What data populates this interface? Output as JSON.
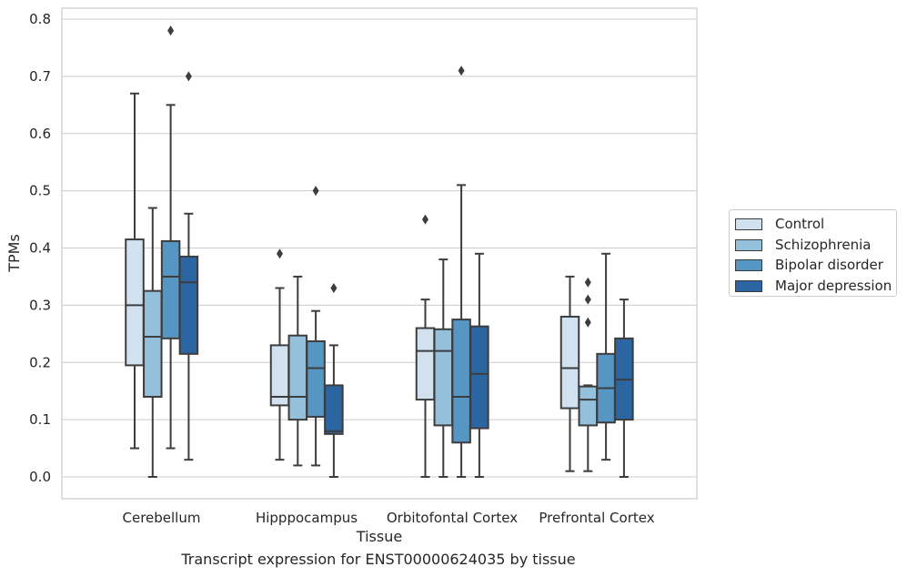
{
  "chart_data": {
    "type": "box",
    "title": "",
    "xlabel": "Tissue",
    "ylabel": "TPMs",
    "ylim": [
      -0.04,
      0.82
    ],
    "yticks": [
      0.0,
      0.1,
      0.2,
      0.3,
      0.4,
      0.5,
      0.6,
      0.7,
      0.8
    ],
    "ytick_labels": [
      "0.0",
      "0.1",
      "0.2",
      "0.3",
      "0.4",
      "0.5",
      "0.6",
      "0.7",
      "0.8"
    ],
    "grid": "horizontal",
    "legend_position": "right",
    "categories": [
      "Cerebellum",
      "Hipppocampus",
      "Orbitofontal Cortex",
      "Prefrontal Cortex"
    ],
    "series": [
      {
        "name": "Control",
        "color": "#d1e1f0",
        "boxes": [
          {
            "low": 0.05,
            "q1": 0.195,
            "median": 0.3,
            "q3": 0.415,
            "high": 0.67,
            "outliers": []
          },
          {
            "low": 0.03,
            "q1": 0.125,
            "median": 0.14,
            "q3": 0.23,
            "high": 0.33,
            "outliers": [
              0.39
            ]
          },
          {
            "low": 0.0,
            "q1": 0.135,
            "median": 0.22,
            "q3": 0.26,
            "high": 0.31,
            "outliers": [
              0.45
            ]
          },
          {
            "low": 0.01,
            "q1": 0.12,
            "median": 0.19,
            "q3": 0.28,
            "high": 0.35,
            "outliers": []
          }
        ]
      },
      {
        "name": "Schizophrenia",
        "color": "#95c0dc",
        "boxes": [
          {
            "low": 0.0,
            "q1": 0.14,
            "median": 0.245,
            "q3": 0.325,
            "high": 0.47,
            "outliers": []
          },
          {
            "low": 0.02,
            "q1": 0.1,
            "median": 0.14,
            "q3": 0.247,
            "high": 0.35,
            "outliers": []
          },
          {
            "low": 0.0,
            "q1": 0.09,
            "median": 0.22,
            "q3": 0.258,
            "high": 0.38,
            "outliers": []
          },
          {
            "low": 0.01,
            "q1": 0.09,
            "median": 0.135,
            "q3": 0.158,
            "high": 0.16,
            "outliers": [
              0.27,
              0.31,
              0.34
            ]
          }
        ]
      },
      {
        "name": "Bipolar disorder",
        "color": "#5596c4",
        "boxes": [
          {
            "low": 0.05,
            "q1": 0.242,
            "median": 0.35,
            "q3": 0.412,
            "high": 0.65,
            "outliers": [
              0.78
            ]
          },
          {
            "low": 0.02,
            "q1": 0.105,
            "median": 0.19,
            "q3": 0.237,
            "high": 0.29,
            "outliers": [
              0.5
            ]
          },
          {
            "low": 0.0,
            "q1": 0.06,
            "median": 0.14,
            "q3": 0.275,
            "high": 0.51,
            "outliers": [
              0.71
            ]
          },
          {
            "low": 0.03,
            "q1": 0.095,
            "median": 0.155,
            "q3": 0.215,
            "high": 0.39,
            "outliers": []
          }
        ]
      },
      {
        "name": "Major depression",
        "color": "#2b66a3",
        "boxes": [
          {
            "low": 0.03,
            "q1": 0.215,
            "median": 0.34,
            "q3": 0.385,
            "high": 0.46,
            "outliers": [
              0.7
            ]
          },
          {
            "low": 0.0,
            "q1": 0.075,
            "median": 0.08,
            "q3": 0.16,
            "high": 0.23,
            "outliers": [
              0.33
            ]
          },
          {
            "low": 0.0,
            "q1": 0.085,
            "median": 0.18,
            "q3": 0.263,
            "high": 0.39,
            "outliers": []
          },
          {
            "low": 0.0,
            "q1": 0.1,
            "median": 0.17,
            "q3": 0.242,
            "high": 0.31,
            "outliers": []
          }
        ]
      }
    ]
  },
  "caption": "Transcript expression for ENST00000624035 by tissue"
}
